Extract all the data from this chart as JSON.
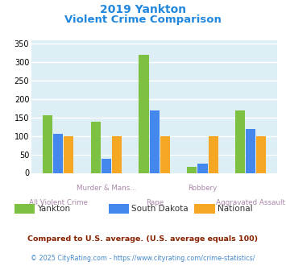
{
  "title_line1": "2019 Yankton",
  "title_line2": "Violent Crime Comparison",
  "title_color": "#2288dd",
  "categories": [
    "All Violent Crime",
    "Murder & Mans...",
    "Rape",
    "Robbery",
    "Aggravated Assault"
  ],
  "series": {
    "Yankton": [
      155,
      138,
      320,
      17,
      170
    ],
    "South Dakota": [
      105,
      38,
      170,
      26,
      120
    ],
    "National": [
      100,
      100,
      100,
      100,
      100
    ]
  },
  "colors": {
    "Yankton": "#7dc142",
    "South Dakota": "#4488ee",
    "National": "#f5a623"
  },
  "ylim": [
    0,
    360
  ],
  "yticks": [
    0,
    50,
    100,
    150,
    200,
    250,
    300,
    350
  ],
  "bg_color": "#ddeef5",
  "grid_color": "#ffffff",
  "footnote1": "Compared to U.S. average. (U.S. average equals 100)",
  "footnote2": "© 2025 CityRating.com - https://www.cityrating.com/crime-statistics/",
  "footnote1_color": "#882200",
  "footnote2_color": "#4488cc",
  "label_color": "#aa88aa",
  "legend_text_color": "#333333"
}
